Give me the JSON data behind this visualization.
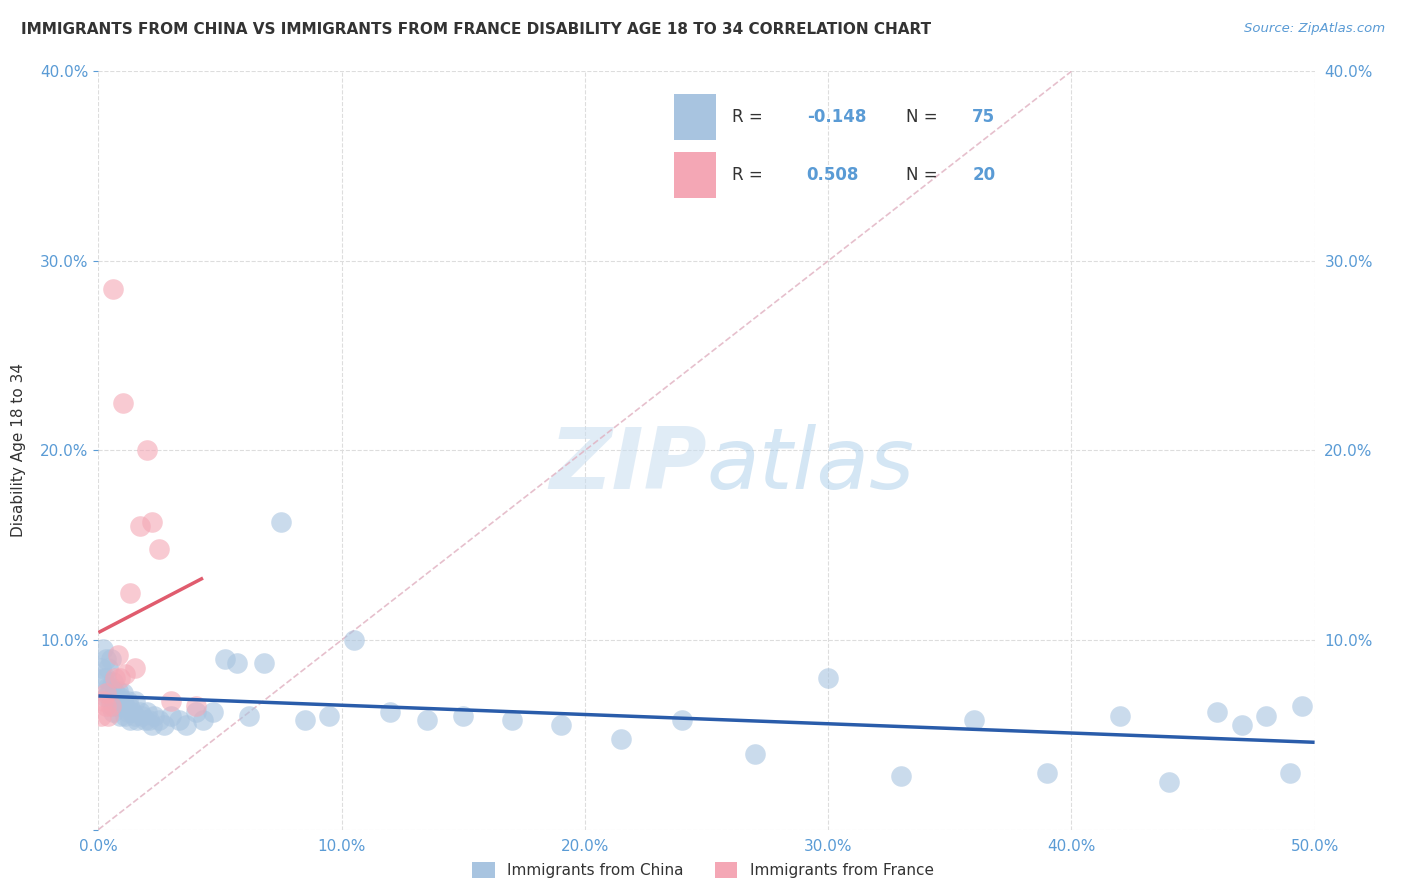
{
  "title": "IMMIGRANTS FROM CHINA VS IMMIGRANTS FROM FRANCE DISABILITY AGE 18 TO 34 CORRELATION CHART",
  "source": "Source: ZipAtlas.com",
  "ylabel": "Disability Age 18 to 34",
  "xlim": [
    0.0,
    0.5
  ],
  "ylim": [
    0.0,
    0.4
  ],
  "xticks": [
    0.0,
    0.1,
    0.2,
    0.3,
    0.4,
    0.5
  ],
  "yticks": [
    0.0,
    0.1,
    0.2,
    0.3,
    0.4
  ],
  "china_color": "#a8c4e0",
  "france_color": "#f4a7b5",
  "china_line_color": "#2a5caa",
  "france_line_color": "#e05c6e",
  "diag_line_color": "#e0b0c0",
  "china_R": -0.148,
  "china_N": 75,
  "france_R": 0.508,
  "france_N": 20,
  "legend_label_china": "Immigrants from China",
  "legend_label_france": "Immigrants from France",
  "watermark_zip": "ZIP",
  "watermark_atlas": "atlas",
  "background_color": "#ffffff",
  "grid_color": "#dddddd",
  "tick_color": "#5a9bd5",
  "title_color": "#333333",
  "china_scatter_x": [
    0.001,
    0.002,
    0.002,
    0.003,
    0.003,
    0.003,
    0.004,
    0.004,
    0.004,
    0.005,
    0.005,
    0.005,
    0.006,
    0.006,
    0.006,
    0.007,
    0.007,
    0.008,
    0.008,
    0.009,
    0.009,
    0.01,
    0.01,
    0.011,
    0.011,
    0.012,
    0.012,
    0.013,
    0.013,
    0.014,
    0.015,
    0.015,
    0.016,
    0.017,
    0.018,
    0.019,
    0.02,
    0.021,
    0.022,
    0.023,
    0.025,
    0.027,
    0.03,
    0.033,
    0.036,
    0.04,
    0.043,
    0.047,
    0.052,
    0.057,
    0.062,
    0.068,
    0.075,
    0.085,
    0.095,
    0.105,
    0.12,
    0.135,
    0.15,
    0.17,
    0.19,
    0.215,
    0.24,
    0.27,
    0.3,
    0.33,
    0.36,
    0.39,
    0.42,
    0.44,
    0.46,
    0.47,
    0.48,
    0.49,
    0.495
  ],
  "china_scatter_y": [
    0.085,
    0.08,
    0.095,
    0.07,
    0.08,
    0.09,
    0.075,
    0.085,
    0.072,
    0.068,
    0.075,
    0.09,
    0.065,
    0.078,
    0.062,
    0.072,
    0.068,
    0.065,
    0.073,
    0.07,
    0.06,
    0.068,
    0.072,
    0.065,
    0.06,
    0.062,
    0.068,
    0.058,
    0.064,
    0.062,
    0.06,
    0.068,
    0.058,
    0.062,
    0.06,
    0.058,
    0.062,
    0.058,
    0.055,
    0.06,
    0.058,
    0.055,
    0.06,
    0.058,
    0.055,
    0.062,
    0.058,
    0.062,
    0.09,
    0.088,
    0.06,
    0.088,
    0.162,
    0.058,
    0.06,
    0.1,
    0.062,
    0.058,
    0.06,
    0.058,
    0.055,
    0.048,
    0.058,
    0.04,
    0.08,
    0.028,
    0.058,
    0.03,
    0.06,
    0.025,
    0.062,
    0.055,
    0.06,
    0.03,
    0.065
  ],
  "france_scatter_x": [
    0.001,
    0.002,
    0.003,
    0.003,
    0.004,
    0.005,
    0.006,
    0.007,
    0.008,
    0.009,
    0.01,
    0.011,
    0.013,
    0.015,
    0.017,
    0.02,
    0.022,
    0.025,
    0.03,
    0.04
  ],
  "france_scatter_y": [
    0.06,
    0.068,
    0.065,
    0.072,
    0.06,
    0.065,
    0.285,
    0.08,
    0.092,
    0.08,
    0.225,
    0.082,
    0.125,
    0.085,
    0.16,
    0.2,
    0.162,
    0.148,
    0.068,
    0.065
  ]
}
